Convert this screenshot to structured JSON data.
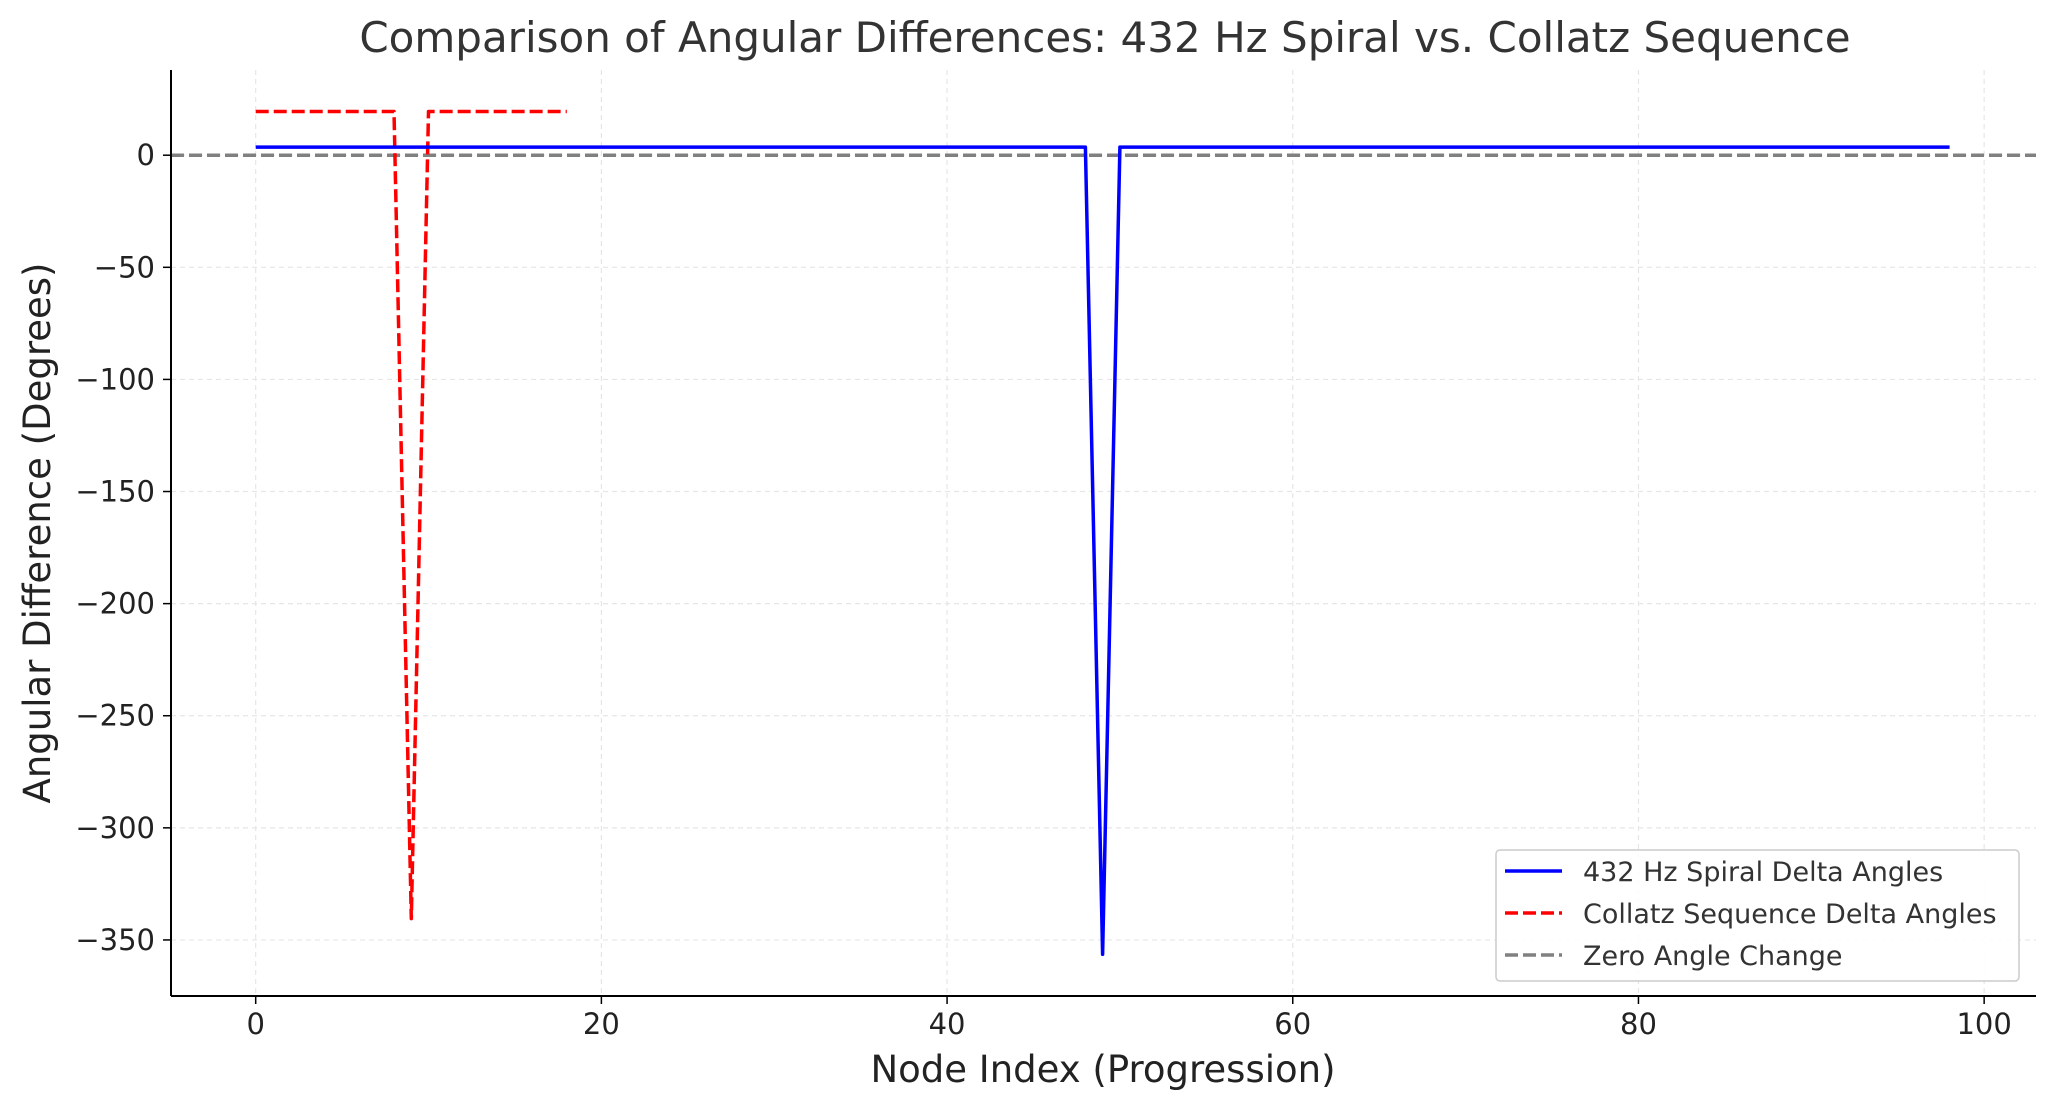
{
  "chart_data": {
    "type": "line",
    "title": "Comparison of Angular Differences: 432 Hz Spiral vs. Collatz Sequence",
    "xlabel": "Node Index (Progression)",
    "ylabel": "Angular Difference (Degrees)",
    "xlim": [
      -4.9,
      103
    ],
    "ylim": [
      -375,
      38
    ],
    "xticks": [
      0,
      20,
      40,
      60,
      80,
      100
    ],
    "xtick_labels": [
      "0",
      "20",
      "40",
      "60",
      "80",
      "100"
    ],
    "yticks": [
      0,
      -50,
      -100,
      -150,
      -200,
      -250,
      -300,
      -350
    ],
    "ytick_labels": [
      "0",
      "−50",
      "−100",
      "−150",
      "−200",
      "−250",
      "−300",
      "−350"
    ],
    "grid": true,
    "legend_position": "lower-right",
    "series": [
      {
        "name": "432 Hz Spiral Delta Angles",
        "color": "#0000ff",
        "style": "solid",
        "x": [
          0,
          48,
          49,
          50,
          98
        ],
        "y": [
          3.6,
          3.6,
          -356.4,
          3.6,
          3.6
        ]
      },
      {
        "name": "Collatz Sequence Delta Angles",
        "color": "#ff0000",
        "style": "dashed",
        "x": [
          0,
          8,
          9,
          10,
          18
        ],
        "y": [
          19.5,
          19.5,
          -340.5,
          19.5,
          19.5
        ]
      },
      {
        "name": "Zero Angle Change",
        "color": "#808080",
        "style": "dashed",
        "y_constant": 0
      }
    ]
  }
}
